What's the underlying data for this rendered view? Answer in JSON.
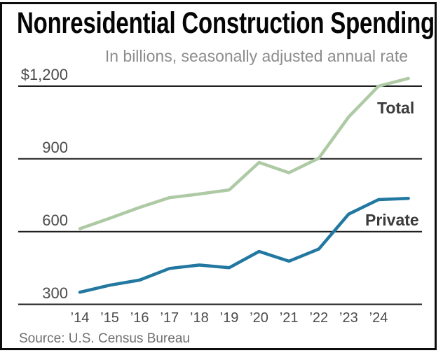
{
  "colors": {
    "background": "#ffffff",
    "frame": "#0d0d0d",
    "grid": "#1f1f1f",
    "title": "#050505",
    "subtitle": "#8c8c8c",
    "axis_labels": "#4b4b4b",
    "series_labels": "#3b3b3b",
    "source": "#6f6f6f",
    "total_line": "#aecaa4",
    "private_line": "#2278a0"
  },
  "chart_data": {
    "type": "line",
    "title": "Nonresidential Construction Spending",
    "subtitle": "In billions, seasonally adjusted annual rate",
    "source": "Source: U.S. Census Bureau",
    "unit": "billions of dollars, seasonally adjusted annual rate",
    "grid": "horizontal",
    "legend": "inline-labels",
    "ylim": [
      300,
      1250
    ],
    "y_ticks": [
      {
        "label": "$1,200",
        "value": 1200
      },
      {
        "label": "900",
        "value": 900
      },
      {
        "label": "600",
        "value": 600
      },
      {
        "label": "300",
        "value": 300
      }
    ],
    "x_tick_labels": [
      "’14",
      "’15",
      "’16",
      "’17",
      "’18",
      "’19",
      "’20",
      "’21",
      "’22",
      "’23",
      "’24"
    ],
    "x_years": [
      2014,
      2015,
      2016,
      2017,
      2018,
      2019,
      2020,
      2021,
      2022,
      2023,
      2024,
      2025
    ],
    "series": [
      {
        "name": "Total",
        "color": "#aecaa4",
        "values": [
          612,
          655,
          700,
          740,
          755,
          772,
          885,
          843,
          903,
          1073,
          1200,
          1232
        ]
      },
      {
        "name": "Private",
        "color": "#2278a0",
        "values": [
          350,
          379,
          400,
          448,
          462,
          451,
          518,
          478,
          528,
          672,
          732,
          737
        ]
      }
    ]
  }
}
